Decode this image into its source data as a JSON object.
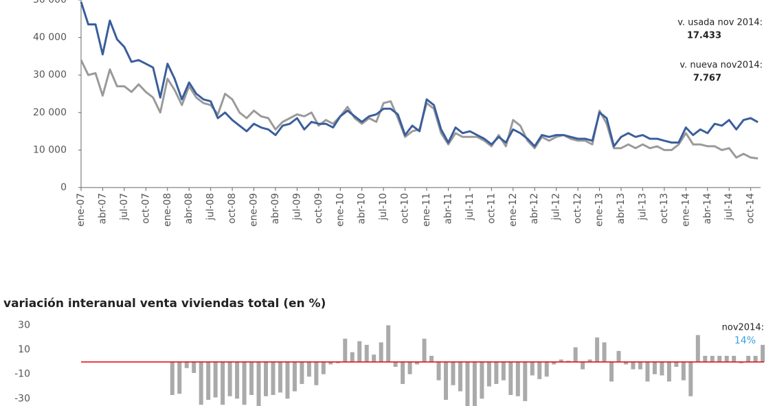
{
  "chart_data": [
    {
      "type": "line",
      "categories": [
        "ene-07",
        null,
        null,
        "abr-07",
        null,
        null,
        "jul-07",
        null,
        null,
        "oct-07",
        null,
        null,
        "ene-08",
        null,
        null,
        "abr-08",
        null,
        null,
        "jul-08",
        null,
        null,
        "oct-08",
        null,
        null,
        "ene-09",
        null,
        null,
        "abr-09",
        null,
        null,
        "jul-09",
        null,
        null,
        "oct-09",
        null,
        null,
        "ene-10",
        null,
        null,
        "abr-10",
        null,
        null,
        "jul-10",
        null,
        null,
        "oct-10",
        null,
        null,
        "ene-11",
        null,
        null,
        "abr-11",
        null,
        null,
        "jul-11",
        null,
        null,
        "oct-11",
        null,
        null,
        "ene-12",
        null,
        null,
        "abr-12",
        null,
        null,
        "jul-12",
        null,
        null,
        "oct-12",
        null,
        null,
        "ene-13",
        null,
        null,
        "abr-13",
        null,
        null,
        "jul-13",
        null,
        null,
        "oct-13",
        null,
        null,
        "ene-14",
        null,
        null,
        "abr-14",
        null,
        null,
        "jul-14",
        null,
        null,
        "oct-14",
        null
      ],
      "series": [
        {
          "name": "v. usada",
          "color": "#3a5e9c",
          "values": [
            49500,
            43500,
            43500,
            35500,
            44500,
            39500,
            37500,
            33500,
            34000,
            33000,
            32000,
            24000,
            33000,
            29000,
            23500,
            28000,
            25000,
            23500,
            23000,
            18500,
            20000,
            18000,
            16500,
            15000,
            17000,
            16000,
            15500,
            14000,
            16500,
            17000,
            18500,
            15500,
            17500,
            17000,
            17000,
            16000,
            19000,
            20500,
            19000,
            17500,
            19000,
            19500,
            21000,
            21000,
            19500,
            14000,
            16500,
            15000,
            23500,
            22000,
            15500,
            12000,
            16000,
            14500,
            15000,
            14000,
            13000,
            11500,
            13500,
            12000,
            15500,
            14500,
            13000,
            11000,
            14000,
            13500,
            14000,
            14000,
            13500,
            13000,
            13000,
            12500,
            20000,
            18500,
            11000,
            13500,
            14500,
            13500,
            14000,
            13000,
            13000,
            12500,
            12000,
            12000,
            16000,
            14000,
            15500,
            14500,
            17000,
            16500,
            18000,
            15500,
            18000,
            18500,
            17433
          ],
          "last_label": "v. usada nov 2014:",
          "last_value_label": "17.433"
        },
        {
          "name": "v. nueva",
          "color": "#9a9a9a",
          "values": [
            34000,
            30000,
            30500,
            24500,
            31500,
            27000,
            27000,
            25500,
            27500,
            25500,
            24000,
            20000,
            29000,
            26000,
            22000,
            27000,
            24000,
            22500,
            22000,
            19500,
            25000,
            23500,
            20000,
            18500,
            20500,
            19000,
            18500,
            15500,
            17500,
            18500,
            19500,
            19000,
            20000,
            16500,
            18000,
            17000,
            19000,
            21500,
            18500,
            17000,
            18500,
            17500,
            22500,
            23000,
            18500,
            13500,
            15000,
            15500,
            22500,
            21000,
            14500,
            11500,
            14500,
            13500,
            13500,
            13500,
            12500,
            11000,
            14000,
            11000,
            18000,
            16500,
            12500,
            10500,
            13500,
            12500,
            13500,
            14000,
            13000,
            12500,
            12500,
            11500,
            20500,
            17000,
            10500,
            10500,
            11500,
            10500,
            11500,
            10500,
            11000,
            10000,
            10000,
            11500,
            14500,
            11500,
            11500,
            11000,
            11000,
            10000,
            10500,
            8000,
            9000,
            8000,
            7767
          ],
          "last_label": "v. nueva nov2014:",
          "last_value_label": "7.767"
        }
      ],
      "ylim": [
        0,
        50000
      ],
      "yticks": [
        0,
        {
          "value": 10000,
          "label": "10 000"
        },
        {
          "value": 20000,
          "label": "20 000"
        },
        {
          "value": 30000,
          "label": "30 000"
        },
        {
          "value": 40000,
          "label": "40 000"
        },
        {
          "value": 50000,
          "label": "50 000"
        }
      ]
    },
    {
      "type": "bar",
      "title": "variación interanual venta viviendas total (en %)",
      "color": "#aaaaaa",
      "values": [
        -27,
        -26,
        -5,
        -9,
        -35,
        -31,
        -29,
        -35,
        -28,
        -30,
        -35,
        -27,
        -36,
        -28,
        -27,
        -25,
        -30,
        -24,
        -18,
        -12,
        -19,
        -10,
        -2,
        -1,
        19,
        8,
        17,
        14,
        6,
        16,
        30,
        -4,
        -18,
        -10,
        -2,
        19,
        5,
        -15,
        -31,
        -19,
        -24,
        -37,
        -36,
        -30,
        -20,
        -18,
        -15,
        -27,
        -28,
        -32,
        -11,
        -14,
        -12,
        -2,
        2,
        1,
        12,
        -6,
        2,
        20,
        16,
        -16,
        9,
        -2,
        -6,
        -6,
        -16,
        -10,
        -11,
        -16,
        -4,
        -15,
        -28,
        22,
        5,
        5,
        5,
        5,
        5,
        -1,
        5,
        5,
        14
      ],
      "last_label": "nov2014:",
      "last_value_label": "14%",
      "ylim": [
        -36,
        37
      ],
      "yticks": [
        30,
        10,
        -10,
        -30
      ],
      "zero_line_color": "#e00000"
    }
  ]
}
